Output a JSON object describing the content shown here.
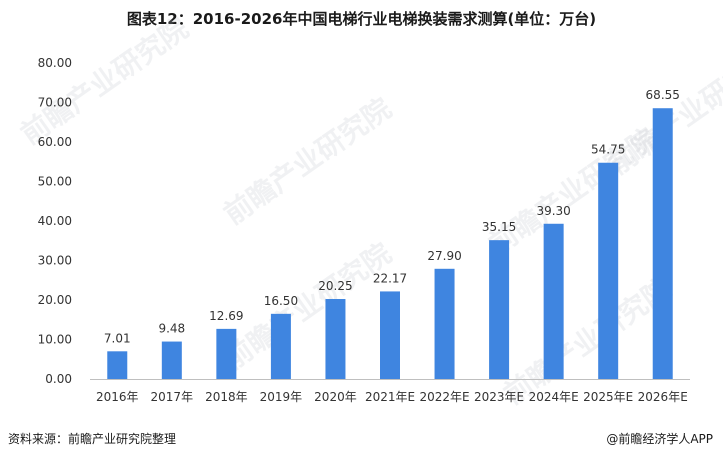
{
  "chart_data": {
    "type": "bar",
    "title": "图表12：2016-2026年中国电梯行业电梯换装需求测算(单位：万台)",
    "categories": [
      "2016年",
      "2017年",
      "2018年",
      "2019年",
      "2020年",
      "2021年E",
      "2022年E",
      "2023年E",
      "2024年E",
      "2025年E",
      "2026年E"
    ],
    "values": [
      7.01,
      9.48,
      12.69,
      16.5,
      20.25,
      22.17,
      27.9,
      35.15,
      39.3,
      54.75,
      68.55
    ],
    "value_labels": [
      "7.01",
      "9.48",
      "12.69",
      "16.50",
      "20.25",
      "22.17",
      "27.90",
      "35.15",
      "39.30",
      "54.75",
      "68.55"
    ],
    "ylim": [
      0,
      80
    ],
    "yticks": [
      "0.00",
      "10.00",
      "20.00",
      "30.00",
      "40.00",
      "50.00",
      "60.00",
      "70.00",
      "80.00"
    ],
    "xlabel": "",
    "ylabel": "",
    "grid": false,
    "legend": "none",
    "bar_color": "#3f85e0"
  },
  "footer": {
    "source": "资料来源：前瞻产业研究院整理",
    "credit": "@前瞻经济学人APP"
  },
  "watermark": {
    "text": "前瞻产业研究院"
  }
}
